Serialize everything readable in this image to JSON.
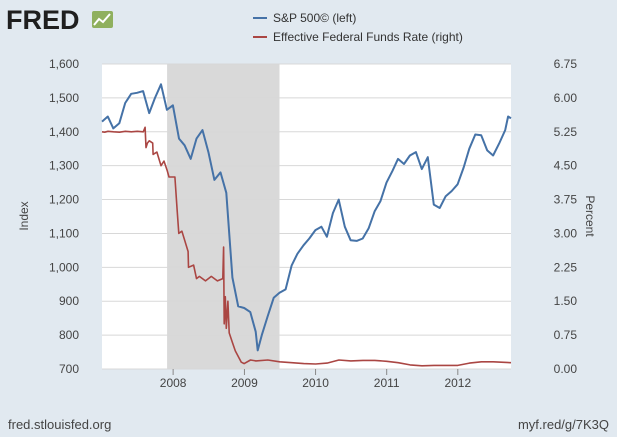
{
  "brand": {
    "logo_text": "FRED"
  },
  "footer": {
    "source": "fred.stlouisfed.org",
    "short_url": "myf.red/g/7K3Q"
  },
  "colors": {
    "sp500": "#4572a7",
    "fedfunds": "#aa4643",
    "recession": "#d9d9d9",
    "plot_bg": "#ffffff",
    "page_bg": "#e1e9f0"
  },
  "chart_data": {
    "type": "line",
    "title": "",
    "xlabel": "",
    "ylabel_left": "Index",
    "ylabel_right": "Percent",
    "grid": "horizontal",
    "legend_position": "top",
    "x_range": [
      "2007-01-01",
      "2012-09-30"
    ],
    "ylim_left": [
      700,
      1600
    ],
    "ylim_right": [
      0,
      6.75
    ],
    "x_ticks": [
      "2008",
      "2009",
      "2010",
      "2011",
      "2012"
    ],
    "y_ticks_left": [
      "700",
      "800",
      "900",
      "1,000",
      "1,100",
      "1,200",
      "1,300",
      "1,400",
      "1,500",
      "1,600"
    ],
    "y_ticks_right": [
      "0.00",
      "0.75",
      "1.50",
      "2.25",
      "3.00",
      "3.75",
      "4.50",
      "5.25",
      "6.00",
      "6.75"
    ],
    "recession_shading": [
      {
        "start": "2007-12-01",
        "end": "2009-06-30"
      }
    ],
    "series": [
      {
        "name": "S&P 500© (left)",
        "axis": "left",
        "points": [
          [
            "2007-01-01",
            1430
          ],
          [
            "2007-01-31",
            1445
          ],
          [
            "2007-02-28",
            1410
          ],
          [
            "2007-03-31",
            1425
          ],
          [
            "2007-04-30",
            1485
          ],
          [
            "2007-05-31",
            1512
          ],
          [
            "2007-06-30",
            1515
          ],
          [
            "2007-07-31",
            1520
          ],
          [
            "2007-08-31",
            1455
          ],
          [
            "2007-09-30",
            1500
          ],
          [
            "2007-10-31",
            1540
          ],
          [
            "2007-11-30",
            1465
          ],
          [
            "2007-12-31",
            1478
          ],
          [
            "2008-01-31",
            1380
          ],
          [
            "2008-02-29",
            1360
          ],
          [
            "2008-03-31",
            1320
          ],
          [
            "2008-04-30",
            1380
          ],
          [
            "2008-05-31",
            1405
          ],
          [
            "2008-06-30",
            1340
          ],
          [
            "2008-07-31",
            1258
          ],
          [
            "2008-08-31",
            1280
          ],
          [
            "2008-09-30",
            1220
          ],
          [
            "2008-10-31",
            970
          ],
          [
            "2008-11-30",
            885
          ],
          [
            "2008-12-31",
            880
          ],
          [
            "2009-01-31",
            868
          ],
          [
            "2009-02-28",
            810
          ],
          [
            "2009-03-10",
            755
          ],
          [
            "2009-03-31",
            800
          ],
          [
            "2009-04-30",
            855
          ],
          [
            "2009-05-31",
            910
          ],
          [
            "2009-06-30",
            925
          ],
          [
            "2009-07-31",
            935
          ],
          [
            "2009-08-31",
            1005
          ],
          [
            "2009-09-30",
            1040
          ],
          [
            "2009-10-31",
            1065
          ],
          [
            "2009-11-30",
            1085
          ],
          [
            "2009-12-31",
            1110
          ],
          [
            "2010-01-31",
            1120
          ],
          [
            "2010-02-28",
            1090
          ],
          [
            "2010-03-31",
            1160
          ],
          [
            "2010-04-30",
            1200
          ],
          [
            "2010-05-31",
            1120
          ],
          [
            "2010-06-30",
            1080
          ],
          [
            "2010-07-31",
            1078
          ],
          [
            "2010-08-31",
            1085
          ],
          [
            "2010-09-30",
            1115
          ],
          [
            "2010-10-31",
            1165
          ],
          [
            "2010-11-30",
            1195
          ],
          [
            "2010-12-31",
            1250
          ],
          [
            "2011-01-31",
            1285
          ],
          [
            "2011-02-28",
            1320
          ],
          [
            "2011-03-31",
            1305
          ],
          [
            "2011-04-30",
            1330
          ],
          [
            "2011-05-31",
            1340
          ],
          [
            "2011-06-30",
            1290
          ],
          [
            "2011-07-31",
            1325
          ],
          [
            "2011-08-31",
            1185
          ],
          [
            "2011-09-30",
            1175
          ],
          [
            "2011-10-31",
            1210
          ],
          [
            "2011-11-30",
            1225
          ],
          [
            "2011-12-31",
            1245
          ],
          [
            "2012-01-31",
            1295
          ],
          [
            "2012-02-29",
            1350
          ],
          [
            "2012-03-31",
            1392
          ],
          [
            "2012-04-30",
            1390
          ],
          [
            "2012-05-31",
            1345
          ],
          [
            "2012-06-30",
            1330
          ],
          [
            "2012-07-31",
            1365
          ],
          [
            "2012-08-31",
            1405
          ],
          [
            "2012-09-15",
            1445
          ],
          [
            "2012-09-30",
            1440
          ]
        ]
      },
      {
        "name": "Effective Federal Funds Rate (right)",
        "axis": "right",
        "points": [
          [
            "2007-01-01",
            5.25
          ],
          [
            "2007-01-15",
            5.24
          ],
          [
            "2007-02-01",
            5.26
          ],
          [
            "2007-03-01",
            5.25
          ],
          [
            "2007-04-01",
            5.24
          ],
          [
            "2007-05-01",
            5.26
          ],
          [
            "2007-06-01",
            5.25
          ],
          [
            "2007-07-01",
            5.26
          ],
          [
            "2007-08-01",
            5.25
          ],
          [
            "2007-08-10",
            5.35
          ],
          [
            "2007-08-15",
            4.9
          ],
          [
            "2007-08-22",
            5.0
          ],
          [
            "2007-09-01",
            5.05
          ],
          [
            "2007-09-18",
            5.0
          ],
          [
            "2007-09-20",
            4.75
          ],
          [
            "2007-10-10",
            4.8
          ],
          [
            "2007-10-31",
            4.5
          ],
          [
            "2007-11-15",
            4.6
          ],
          [
            "2007-12-01",
            4.4
          ],
          [
            "2007-12-11",
            4.25
          ],
          [
            "2008-01-10",
            4.25
          ],
          [
            "2008-01-22",
            3.5
          ],
          [
            "2008-01-30",
            3.0
          ],
          [
            "2008-02-15",
            3.05
          ],
          [
            "2008-03-18",
            2.6
          ],
          [
            "2008-03-20",
            2.25
          ],
          [
            "2008-04-15",
            2.3
          ],
          [
            "2008-04-30",
            2.0
          ],
          [
            "2008-05-15",
            2.05
          ],
          [
            "2008-06-15",
            1.95
          ],
          [
            "2008-07-15",
            2.05
          ],
          [
            "2008-08-15",
            1.95
          ],
          [
            "2008-09-12",
            2.0
          ],
          [
            "2008-09-16",
            2.7
          ],
          [
            "2008-09-19",
            1.0
          ],
          [
            "2008-09-25",
            1.6
          ],
          [
            "2008-09-30",
            0.9
          ],
          [
            "2008-10-08",
            1.5
          ],
          [
            "2008-10-15",
            0.8
          ],
          [
            "2008-10-30",
            0.6
          ],
          [
            "2008-11-15",
            0.4
          ],
          [
            "2008-12-16",
            0.15
          ],
          [
            "2008-12-31",
            0.12
          ],
          [
            "2009-02-01",
            0.2
          ],
          [
            "2009-03-01",
            0.18
          ],
          [
            "2009-05-01",
            0.2
          ],
          [
            "2009-07-01",
            0.16
          ],
          [
            "2009-09-01",
            0.14
          ],
          [
            "2009-11-01",
            0.12
          ],
          [
            "2010-01-01",
            0.11
          ],
          [
            "2010-03-01",
            0.13
          ],
          [
            "2010-05-01",
            0.2
          ],
          [
            "2010-07-01",
            0.18
          ],
          [
            "2010-09-01",
            0.19
          ],
          [
            "2010-11-01",
            0.19
          ],
          [
            "2011-01-01",
            0.17
          ],
          [
            "2011-03-01",
            0.14
          ],
          [
            "2011-05-01",
            0.09
          ],
          [
            "2011-07-01",
            0.07
          ],
          [
            "2011-09-01",
            0.08
          ],
          [
            "2011-11-01",
            0.08
          ],
          [
            "2012-01-01",
            0.08
          ],
          [
            "2012-03-01",
            0.13
          ],
          [
            "2012-05-01",
            0.16
          ],
          [
            "2012-07-01",
            0.16
          ],
          [
            "2012-09-30",
            0.14
          ]
        ]
      }
    ]
  }
}
